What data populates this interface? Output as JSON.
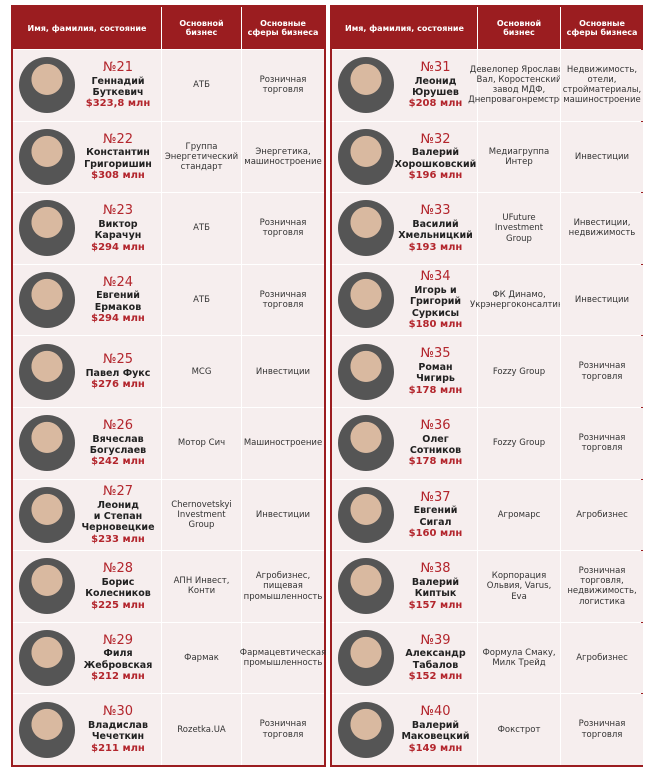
{
  "tables": [
    {
      "header": [
        "Имя, фамилия, состояние",
        "Основной бизнес",
        "Основные сферы бизнеса"
      ],
      "rows": [
        {
          "rank": "№21",
          "name": [
            "Геннадий",
            "Буткевич"
          ],
          "wealth": "$323,8 млн",
          "business": "АТБ",
          "sphere": "Розничная торговля"
        },
        {
          "rank": "№22",
          "name": [
            "Константин",
            "Григоришин"
          ],
          "wealth": "$308 млн",
          "business": "Группа Энергетический стандарт",
          "sphere": "Энергетика, машиностроение"
        },
        {
          "rank": "№23",
          "name": [
            "Виктор",
            "Карачун"
          ],
          "wealth": "$294 млн",
          "business": "АТБ",
          "sphere": "Розничная торговля"
        },
        {
          "rank": "№24",
          "name": [
            "Евгений",
            "Ермаков"
          ],
          "wealth": "$294 млн",
          "business": "АТБ",
          "sphere": "Розничная торговля"
        },
        {
          "rank": "№25",
          "name": [
            "Павел Фукс"
          ],
          "wealth": "$276 млн",
          "business": "MCG",
          "sphere": "Инвестиции"
        },
        {
          "rank": "№26",
          "name": [
            "Вячеслав",
            "Богуслаев"
          ],
          "wealth": "$242 млн",
          "business": "Мотор Сич",
          "sphere": "Машиностроение"
        },
        {
          "rank": "№27",
          "name": [
            "Леонид",
            "и Степан",
            "Черновецкие"
          ],
          "wealth": "$233 млн",
          "business": "Chernovetskyi Investment Group",
          "sphere": "Инвестиции"
        },
        {
          "rank": "№28",
          "name": [
            "Борис",
            "Колесников"
          ],
          "wealth": "$225 млн",
          "business": "АПН Инвест, Конти",
          "sphere": "Агробизнес, пищевая промышленность"
        },
        {
          "rank": "№29",
          "name": [
            "Филя",
            "Жебровская"
          ],
          "wealth": "$212 млн",
          "business": "Фармак",
          "sphere": "Фармацевтическая промышленность"
        },
        {
          "rank": "№30",
          "name": [
            "Владислав",
            "Чечеткин"
          ],
          "wealth": "$211 млн",
          "business": "Rozetka.UA",
          "sphere": "Розничная торговля"
        }
      ]
    },
    {
      "header": [
        "Имя, фамилия, состояние",
        "Основной бизнес",
        "Основные сферы бизнеса"
      ],
      "rows": [
        {
          "rank": "№31",
          "name": [
            "Леонид",
            "Юрушев"
          ],
          "wealth": "$208 млн",
          "business": "Девелопер Ярославов Вал, Коростенский завод МДФ, Днепровагонремстрой",
          "sphere": "Недвижимость, отели, стройматериалы, машиностроение"
        },
        {
          "rank": "№32",
          "name": [
            "Валерий",
            "Хорошковский"
          ],
          "wealth": "$196 млн",
          "business": "Медиагруппа Интер",
          "sphere": "Инвестиции"
        },
        {
          "rank": "№33",
          "name": [
            "Василий",
            "Хмельницкий"
          ],
          "wealth": "$193 млн",
          "business": "UFuture Investment Group",
          "sphere": "Инвестиции, недвижимость"
        },
        {
          "rank": "№34",
          "name": [
            "Игорь и",
            "Григорий",
            "Суркисы"
          ],
          "wealth": "$180 млн",
          "business": "ФК Динамо, Укрэнергоконсалтинг",
          "sphere": "Инвестиции"
        },
        {
          "rank": "№35",
          "name": [
            "Роман",
            "Чигирь"
          ],
          "wealth": "$178 млн",
          "business": "Fozzy Group",
          "sphere": "Розничная торговля"
        },
        {
          "rank": "№36",
          "name": [
            "Олег",
            "Сотников"
          ],
          "wealth": "$178 млн",
          "business": "Fozzy Group",
          "sphere": "Розничная торговля"
        },
        {
          "rank": "№37",
          "name": [
            "Евгений",
            "Сигал"
          ],
          "wealth": "$160 млн",
          "business": "Агромарс",
          "sphere": "Агробизнес"
        },
        {
          "rank": "№38",
          "name": [
            "Валерий",
            "Киптык"
          ],
          "wealth": "$157 млн",
          "business": "Корпорация Ольвия, Varus, Eva",
          "sphere": "Розничная торговля, недвижимость, логистика"
        },
        {
          "rank": "№39",
          "name": [
            "Александр",
            "Табалов"
          ],
          "wealth": "$152 млн",
          "business": "Формула Смаку, Милк Трейд",
          "sphere": "Агробизнес"
        },
        {
          "rank": "№40",
          "name": [
            "Валерий",
            "Маковецкий"
          ],
          "wealth": "$149 млн",
          "business": "Фокстрот",
          "sphere": "Розничная торговля"
        }
      ]
    }
  ]
}
